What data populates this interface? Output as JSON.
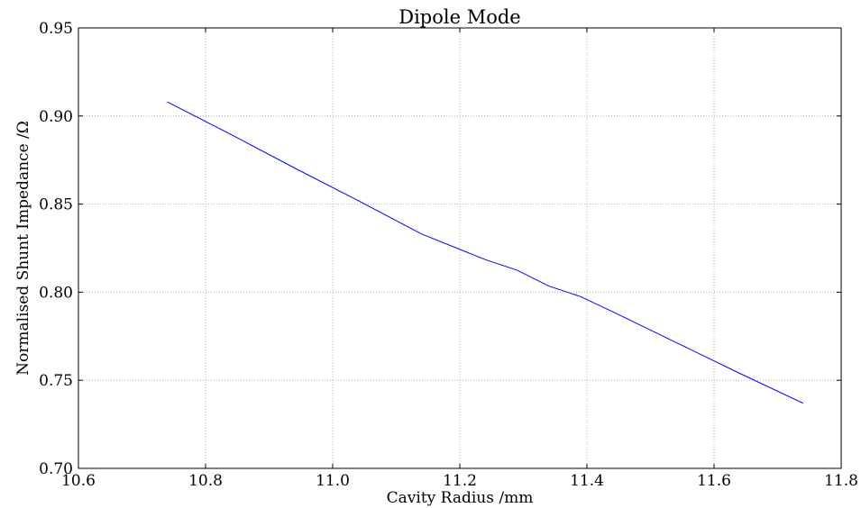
{
  "chart_data": {
    "type": "line",
    "title": "Dipole Mode",
    "xlabel": "Cavity Radius /mm",
    "ylabel": "Normalised Shunt Impedance /Ω",
    "xlim": [
      10.6,
      11.8
    ],
    "ylim": [
      0.7,
      0.95
    ],
    "grid": true,
    "x_ticks": [
      "10.6",
      "10.8",
      "11.0",
      "11.2",
      "11.4",
      "11.6",
      "11.8"
    ],
    "y_ticks": [
      "0.70",
      "0.75",
      "0.80",
      "0.85",
      "0.90",
      "0.95"
    ],
    "series": [
      {
        "color": "#0000ff",
        "x": [
          10.74,
          10.84,
          10.94,
          11.04,
          11.14,
          11.24,
          11.29,
          11.34,
          11.39,
          11.44,
          11.54,
          11.64,
          11.74
        ],
        "y": [
          0.908,
          0.8895,
          0.8705,
          0.852,
          0.833,
          0.8185,
          0.8125,
          0.8035,
          0.7975,
          0.789,
          0.7715,
          0.754,
          0.737
        ]
      }
    ]
  }
}
